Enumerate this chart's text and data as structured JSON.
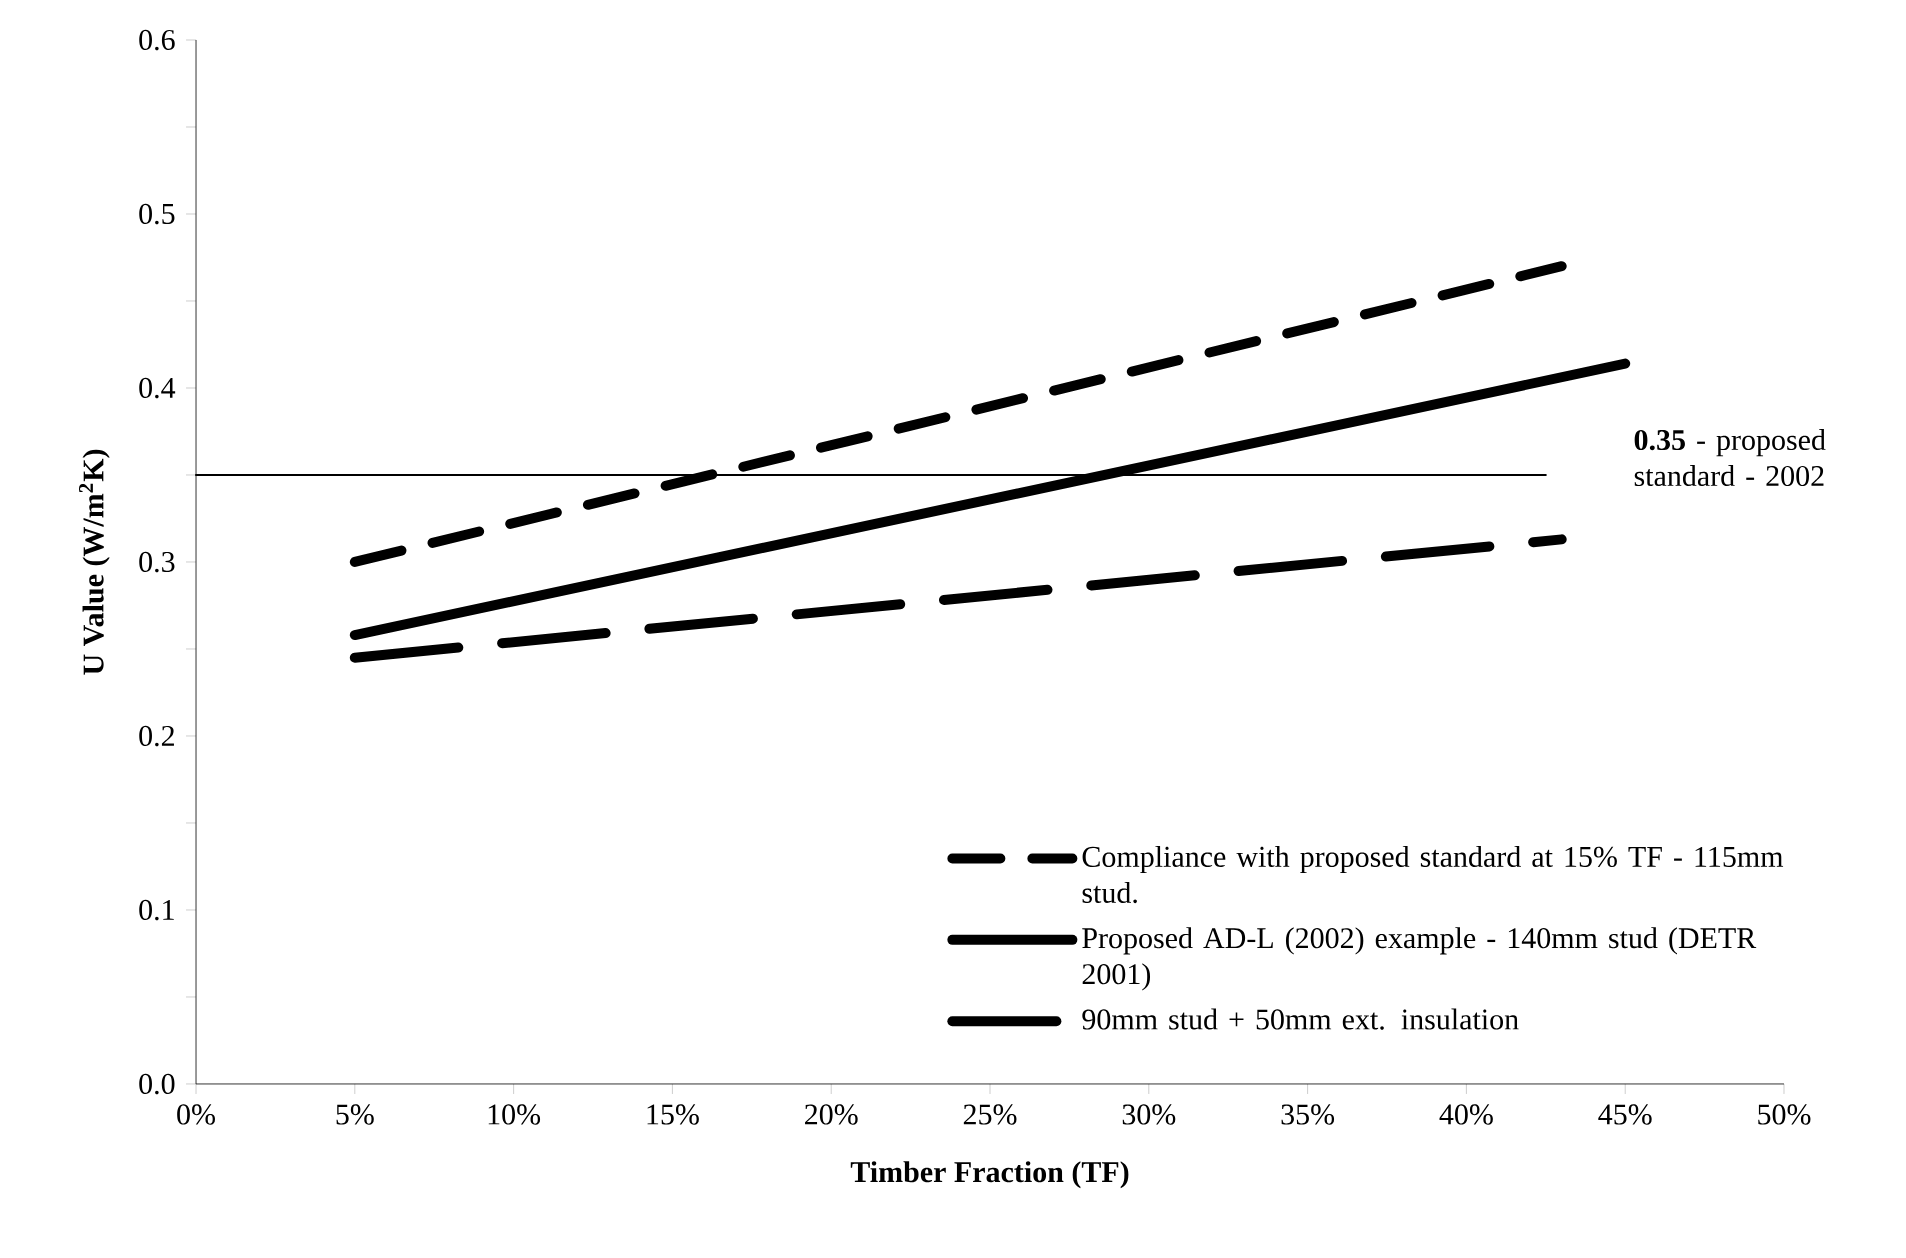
{
  "chart_data": {
    "type": "line",
    "xlabel": "Timber Fraction (TF)",
    "ylabel": "U Value (W/m$^{2}$K)",
    "xlim": [
      0,
      50
    ],
    "ylim": [
      0,
      0.6
    ],
    "xticks": [
      {
        "value": 0,
        "label": "0%"
      },
      {
        "value": 5,
        "label": "5%"
      },
      {
        "value": 10,
        "label": "10%"
      },
      {
        "value": 15,
        "label": "15%"
      },
      {
        "value": 20,
        "label": "20%"
      },
      {
        "value": 25,
        "label": "25%"
      },
      {
        "value": 30,
        "label": "30%"
      },
      {
        "value": 35,
        "label": "35%"
      },
      {
        "value": 40,
        "label": "40%"
      },
      {
        "value": 45,
        "label": "45%"
      },
      {
        "value": 50,
        "label": "50%"
      }
    ],
    "yticks": [
      {
        "value": 0,
        "label": "0.0"
      },
      {
        "value": 0.05,
        "label": null
      },
      {
        "value": 0.1,
        "label": "0.1"
      },
      {
        "value": 0.15,
        "label": null
      },
      {
        "value": 0.2,
        "label": "0.2"
      },
      {
        "value": 0.25,
        "label": null
      },
      {
        "value": 0.3,
        "label": "0.3"
      },
      {
        "value": 0.35,
        "label": null
      },
      {
        "value": 0.4,
        "label": "0.4"
      },
      {
        "value": 0.45,
        "label": null
      },
      {
        "value": 0.5,
        "label": "0.5"
      },
      {
        "value": 0.55,
        "label": null
      },
      {
        "value": 0.6,
        "label": "0.6"
      }
    ],
    "series": [
      {
        "name": "Compliance with proposed standard at 15% TF - 115mm stud.",
        "color": "#000000",
        "line_style": "dotted",
        "x": [
          5,
          43
        ],
        "values": [
          0.3,
          0.47
        ]
      },
      {
        "name": "Proposed AD-L (2002) example - 140mm stud (DETR 2001)",
        "color": "#000000",
        "line_style": "solid",
        "x": [
          5,
          45
        ],
        "values": [
          0.258,
          0.414
        ]
      },
      {
        "name": "90mm stud + 50mm ext. insulation",
        "color": "#000000",
        "line_style": "dashed",
        "x": [
          5,
          43
        ],
        "values": [
          0.245,
          0.313
        ]
      },
      {
        "color": "#000000",
        "line_style": "solid",
        "x": [
          0,
          42.5
        ],
        "values": [
          0.35,
          0.35
        ]
      }
    ],
    "annotations": [
      "**0.35** - proposed standard - 2002"
    ],
    "legend": "bottom right",
    "grid": false,
    "marker": "none"
  }
}
